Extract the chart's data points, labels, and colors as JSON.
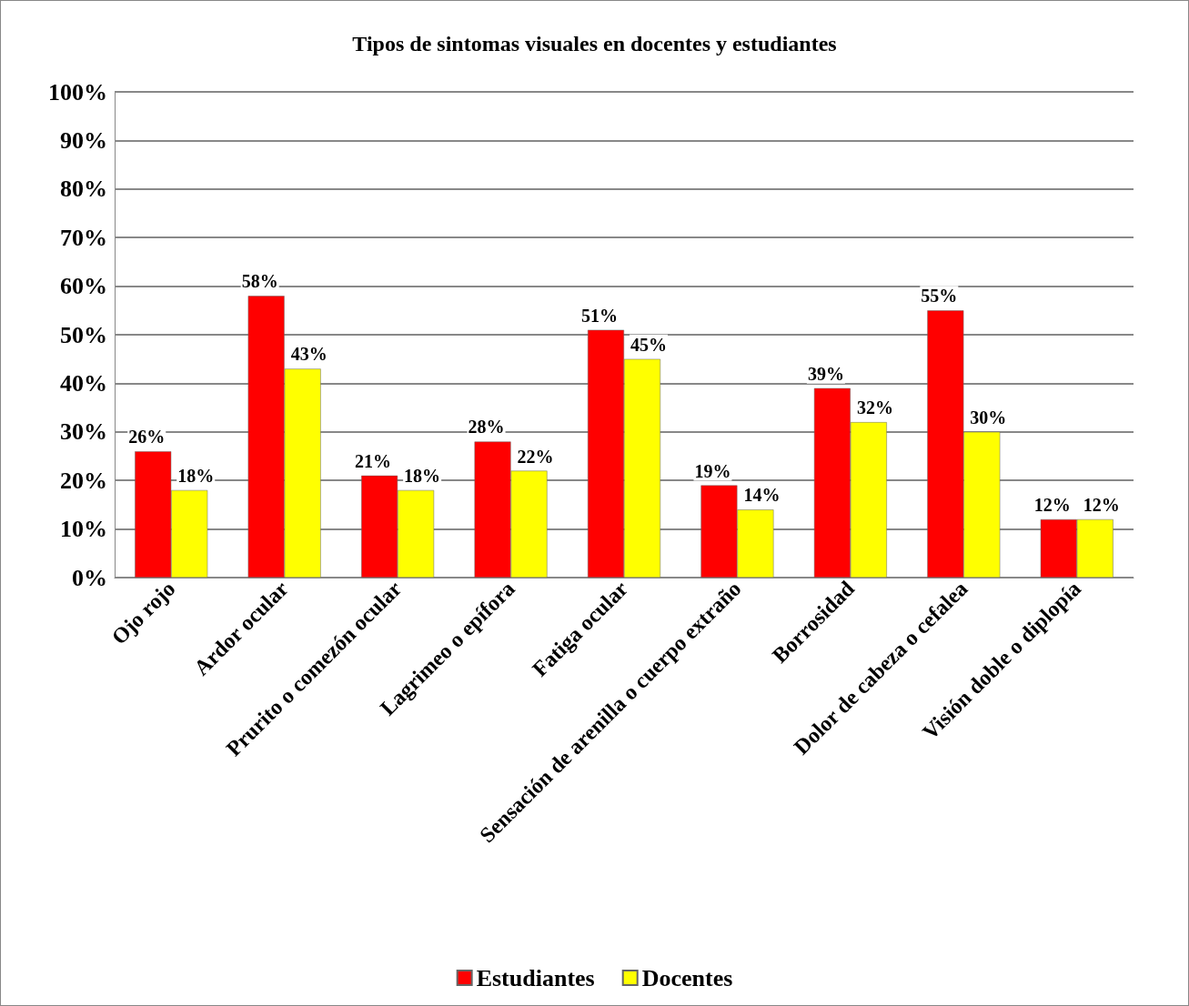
{
  "chart_data": {
    "type": "bar",
    "title": "Tipos de sintomas visuales en docentes y estudiantes",
    "categories": [
      "Ojo rojo",
      "Ardor ocular",
      "Prurito o comezón ocular",
      "Lagrimeo o epífora",
      "Fatiga ocular",
      "Sensación de arenilla o cuerpo extraño",
      "Borrosidad",
      "Dolor de cabeza o cefalea",
      "Visión doble o diplopía"
    ],
    "series": [
      {
        "name": "Estudiantes",
        "color": "#ff0000",
        "values": [
          26,
          58,
          21,
          28,
          51,
          19,
          39,
          55,
          12
        ],
        "value_labels": [
          "26%",
          "58%",
          "21%",
          "28%",
          "51%",
          "19%",
          "39%",
          "55%",
          "12%"
        ]
      },
      {
        "name": "Docentes",
        "color": "#ffff00",
        "values": [
          18,
          43,
          18,
          22,
          45,
          14,
          32,
          30,
          12
        ],
        "value_labels": [
          "18%",
          "43%",
          "18%",
          "22%",
          "45%",
          "14%",
          "32%",
          "30%",
          "12%"
        ]
      }
    ],
    "ylim": [
      0,
      100
    ],
    "yticks": [
      {
        "value": 0,
        "label": "0%"
      },
      {
        "value": 10,
        "label": "10%"
      },
      {
        "value": 20,
        "label": "20%"
      },
      {
        "value": 30,
        "label": "30%"
      },
      {
        "value": 40,
        "label": "40%"
      },
      {
        "value": 50,
        "label": "50%"
      },
      {
        "value": 60,
        "label": "60%"
      },
      {
        "value": 70,
        "label": "70%"
      },
      {
        "value": 80,
        "label": "80%"
      },
      {
        "value": 90,
        "label": "90%"
      },
      {
        "value": 100,
        "label": "100%"
      }
    ],
    "grid": "y",
    "legend": "bottom"
  }
}
